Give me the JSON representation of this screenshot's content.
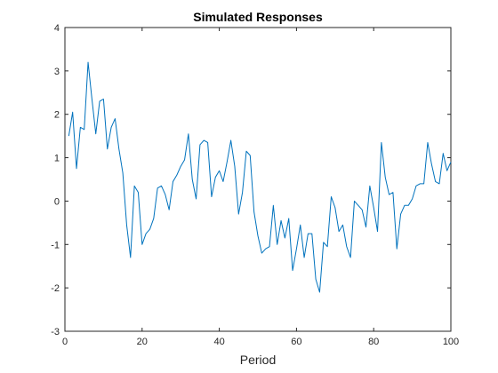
{
  "chart_data": {
    "type": "line",
    "title": "Simulated Responses",
    "xlabel": "Period",
    "ylabel": "",
    "xlim": [
      0,
      100
    ],
    "ylim": [
      -3,
      4
    ],
    "xticks": [
      "0",
      "20",
      "40",
      "60",
      "80",
      "100"
    ],
    "yticks": [
      "-3",
      "-2",
      "-1",
      "0",
      "1",
      "2",
      "3",
      "4"
    ],
    "grid": false,
    "colors": {
      "line": "#0072bd",
      "axes": "#262626",
      "background": "#ffffff"
    },
    "series": [
      {
        "x": [
          1,
          2,
          3,
          4,
          5,
          6,
          7,
          8,
          9,
          10,
          11,
          12,
          13,
          14,
          15,
          16,
          17,
          18,
          19,
          20,
          21,
          22,
          23,
          24,
          25,
          26,
          27,
          28,
          29,
          30,
          31,
          32,
          33,
          34,
          35,
          36,
          37,
          38,
          39,
          40,
          41,
          42,
          43,
          44,
          45,
          46,
          47,
          48,
          49,
          50,
          51,
          52,
          53,
          54,
          55,
          56,
          57,
          58,
          59,
          60,
          61,
          62,
          63,
          64,
          65,
          66,
          67,
          68,
          69,
          70,
          71,
          72,
          73,
          74,
          75,
          76,
          77,
          78,
          79,
          80,
          81,
          82,
          83,
          84,
          85,
          86,
          87,
          88,
          89,
          90,
          91,
          92,
          93,
          94,
          95,
          96,
          97,
          98,
          99,
          100
        ],
        "values": [
          1.5,
          2.05,
          0.75,
          1.7,
          1.65,
          3.2,
          2.35,
          1.55,
          2.3,
          2.35,
          1.2,
          1.7,
          1.9,
          1.2,
          0.65,
          -0.55,
          -1.3,
          0.35,
          0.2,
          -1.0,
          -0.75,
          -0.65,
          -0.4,
          0.3,
          0.35,
          0.15,
          -0.2,
          0.45,
          0.6,
          0.8,
          0.95,
          1.55,
          0.5,
          0.05,
          1.3,
          1.4,
          1.35,
          0.1,
          0.55,
          0.7,
          0.45,
          0.9,
          1.4,
          0.8,
          -0.3,
          0.2,
          1.15,
          1.05,
          -0.25,
          -0.8,
          -1.2,
          -1.1,
          -1.05,
          -0.1,
          -1.0,
          -0.45,
          -0.85,
          -0.4,
          -1.6,
          -1.1,
          -0.55,
          -1.3,
          -0.75,
          -0.75,
          -1.8,
          -2.1,
          -0.95,
          -1.05,
          0.1,
          -0.15,
          -0.7,
          -0.55,
          -1.05,
          -1.3,
          0.0,
          -0.1,
          -0.2,
          -0.6,
          0.35,
          -0.15,
          -0.7,
          1.35,
          0.55,
          0.15,
          0.2,
          -1.1,
          -0.3,
          -0.1,
          -0.1,
          0.05,
          0.35,
          0.4,
          0.4,
          1.35,
          0.85,
          0.45,
          0.4,
          1.1,
          0.7,
          0.9
        ]
      }
    ]
  }
}
